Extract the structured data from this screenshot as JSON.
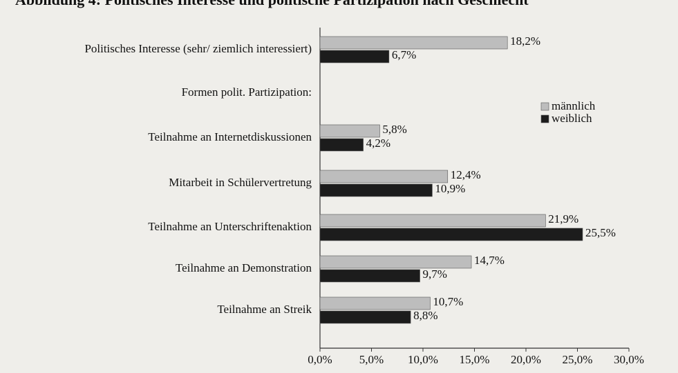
{
  "chart_data": {
    "type": "hbar",
    "title": "Abbildung 4: Politisches Interesse und politische Partizipation nach Geschlecht",
    "categories": [
      "Politisches Interesse (sehr/ ziemlich interessiert)",
      "Formen polit. Partizipation:",
      "Teilnahme an Internetdiskussionen",
      "Mitarbeit in Schülervertretung",
      "Teilnahme an Unterschriftenaktion",
      "Teilnahme an Demonstration",
      "Teilnahme an Streik"
    ],
    "series": [
      {
        "name": "männlich",
        "color": "#bdbdbd",
        "values": [
          18.2,
          null,
          5.8,
          12.4,
          21.9,
          14.7,
          10.7
        ],
        "value_labels": [
          "18,2%",
          null,
          "5,8%",
          "12,4%",
          "21,9%",
          "14,7%",
          "10,7%"
        ]
      },
      {
        "name": "weiblich",
        "color": "#1c1c1c",
        "values": [
          6.7,
          null,
          4.2,
          10.9,
          25.5,
          9.7,
          8.8
        ],
        "value_labels": [
          "6,7%",
          null,
          "4,2%",
          "10,9%",
          "25,5%",
          "9,7%",
          "8,8%"
        ]
      }
    ],
    "xlim": [
      0,
      30
    ],
    "xticks": [
      {
        "value": 0,
        "label": "0,0%"
      },
      {
        "value": 5,
        "label": "5,0%"
      },
      {
        "value": 10,
        "label": "10,0%"
      },
      {
        "value": 15,
        "label": "15,0%"
      },
      {
        "value": 20,
        "label": "20,0%"
      },
      {
        "value": 25,
        "label": "25,0%"
      },
      {
        "value": 30,
        "label": "30,0%"
      }
    ],
    "legend": "right"
  }
}
